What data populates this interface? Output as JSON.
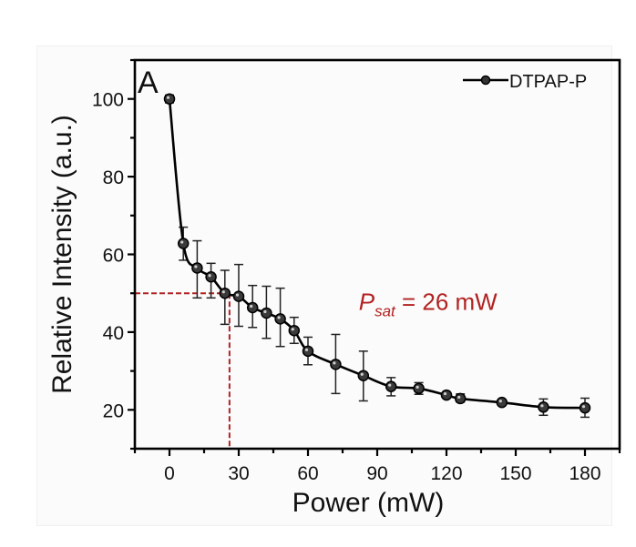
{
  "chart_data": {
    "type": "line",
    "panel_label": "A",
    "title": "",
    "xlabel": "Power (mW)",
    "ylabel": "Relative Intensity (a.u.)",
    "xlim": [
      -15,
      195
    ],
    "ylim": [
      10,
      110
    ],
    "xticks": [
      0,
      30,
      60,
      90,
      120,
      150,
      180
    ],
    "xtick_labels": [
      "0",
      "30",
      "60",
      "90",
      "120",
      "150",
      "180"
    ],
    "xminor_step": 15,
    "yticks": [
      20,
      40,
      60,
      80,
      100
    ],
    "ytick_labels": [
      "20",
      "40",
      "60",
      "80",
      "100"
    ],
    "yminor_step": 10,
    "grid": false,
    "legend": {
      "placement": "top-right",
      "entries": [
        "DTPAP-P"
      ]
    },
    "series": [
      {
        "name": "DTPAP-P",
        "color": "#000000",
        "marker": "circle",
        "x": [
          0,
          6,
          12,
          18,
          24,
          30,
          36,
          42,
          48,
          54,
          60,
          72,
          84,
          96,
          108,
          120,
          126,
          144,
          162,
          180
        ],
        "y": [
          100,
          62.8,
          56.5,
          54.2,
          50.0,
          49.2,
          46.3,
          44.9,
          43.4,
          40.4,
          35.1,
          31.7,
          28.8,
          26.0,
          25.5,
          23.8,
          22.9,
          21.9,
          20.7,
          20.5
        ],
        "err_low": [
          99,
          58.5,
          48.8,
          48.8,
          42.0,
          41.5,
          41.2,
          38.4,
          36.3,
          37.1,
          31.6,
          24.2,
          22.3,
          23.6,
          24.0,
          23.2,
          22.0,
          21.3,
          18.6,
          18.1
        ],
        "err_high": [
          101,
          67.0,
          63.5,
          57.7,
          55.9,
          57.4,
          52.0,
          51.8,
          51.3,
          43.8,
          38.7,
          39.4,
          35.1,
          28.3,
          27.0,
          24.4,
          24.1,
          22.5,
          22.8,
          23.0
        ]
      }
    ],
    "reference_lines": {
      "color": "#b22222",
      "x": 26,
      "y": 50
    },
    "annotation": {
      "symbol": "P",
      "subscript": "sat",
      "text": " = 26 mW",
      "color": "#b22222",
      "at": [
        82,
        49
      ]
    }
  }
}
